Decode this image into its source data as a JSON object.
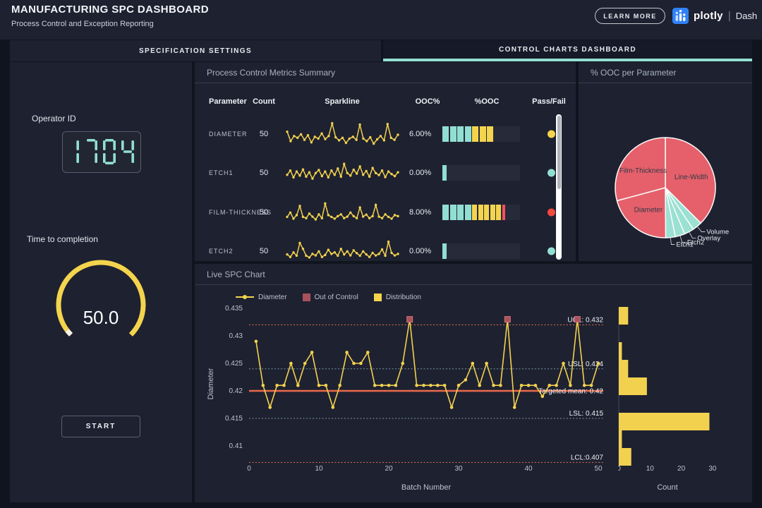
{
  "colors": {
    "accent": "#91dfd2",
    "yellow": "#f4d44d",
    "red": "#f45060",
    "salmon": "#e96a4b",
    "brand_blue": "#2f81f7"
  },
  "header": {
    "title": "MANUFACTURING SPC DASHBOARD",
    "subtitle": "Process Control and Exception Reporting",
    "learn_more": "LEARN MORE",
    "brand": "plotly",
    "brand_divider": "|",
    "brand_suffix": "Dash"
  },
  "tabs": [
    {
      "label": "SPECIFICATION SETTINGS",
      "active": false
    },
    {
      "label": "CONTROL CHARTS DASHBOARD",
      "active": true
    }
  ],
  "left_panel": {
    "operator_label": "Operator ID",
    "gauge_label": "Time to completion",
    "start_label": "START"
  },
  "metrics_panel": {
    "title": "Process Control Metrics Summary",
    "columns": [
      "Parameter",
      "Count",
      "Sparkline",
      "OOC%",
      "%OOC",
      "Pass/Fail"
    ],
    "rows": [
      {
        "name": "DIAMETER",
        "count": "50",
        "ooc": "6.00%",
        "dot_color": "#f4d44d",
        "bar": [
          {
            "color": "#91dfd2",
            "w": 9
          },
          {
            "color": "#91dfd2",
            "w": 9
          },
          {
            "color": "#91dfd2",
            "w": 9
          },
          {
            "color": "#91dfd2",
            "w": 9
          },
          {
            "color": "#f4d44d",
            "w": 9
          },
          {
            "color": "#f4d44d",
            "w": 9
          },
          {
            "color": "#f4d44d",
            "w": 9
          }
        ]
      },
      {
        "name": "ETCH1",
        "count": "50",
        "ooc": "0.00%",
        "dot_color": "#91dfd2",
        "bar": [
          {
            "color": "#91dfd2",
            "w": 6
          }
        ]
      },
      {
        "name": "FILM-THICKNESS",
        "count": "50",
        "ooc": "8.00%",
        "dot_color": "#f4493f",
        "bar": [
          {
            "color": "#91dfd2",
            "w": 9
          },
          {
            "color": "#91dfd2",
            "w": 9
          },
          {
            "color": "#91dfd2",
            "w": 9
          },
          {
            "color": "#91dfd2",
            "w": 9
          },
          {
            "color": "#f4d44d",
            "w": 7
          },
          {
            "color": "#f4d44d",
            "w": 7
          },
          {
            "color": "#f4d44d",
            "w": 7
          },
          {
            "color": "#f4d44d",
            "w": 7
          },
          {
            "color": "#f4d44d",
            "w": 7
          },
          {
            "color": "#f45060",
            "w": 4
          }
        ]
      },
      {
        "name": "ETCH2",
        "count": "50",
        "ooc": "0.00%",
        "dot_color": "#91dfd2",
        "bar": [
          {
            "color": "#91dfd2",
            "w": 6
          }
        ]
      }
    ]
  },
  "pie_panel": {
    "title": "% OOC per Parameter"
  },
  "spc_panel": {
    "title": "Live SPC Chart",
    "legend": [
      {
        "label": "Diameter"
      },
      {
        "label": "Out of Control"
      },
      {
        "label": "Distribution"
      }
    ]
  },
  "chart_data": [
    {
      "id": "operator-led",
      "render": "led",
      "type": "table",
      "digits": "1704",
      "color": "#91dfd2"
    },
    {
      "id": "time-gauge",
      "render": "gauge",
      "type": "pie",
      "display": "50.0",
      "value": 50.0,
      "color": "#f4d44d",
      "tip_color": "#f8f3e1"
    },
    {
      "id": "spark-diameter",
      "render": "sparkline",
      "type": "line",
      "color": "#f2d14f",
      "values": [
        0.62,
        0.25,
        0.45,
        0.38,
        0.52,
        0.3,
        0.48,
        0.2,
        0.42,
        0.35,
        0.55,
        0.33,
        0.45,
        0.95,
        0.4,
        0.28,
        0.38,
        0.18,
        0.35,
        0.42,
        0.3,
        0.9,
        0.35,
        0.25,
        0.4,
        0.15,
        0.32,
        0.45,
        0.28,
        0.92,
        0.38,
        0.3,
        0.5
      ]
    },
    {
      "id": "spark-etch1",
      "render": "sparkline",
      "type": "line",
      "color": "#f2d14f",
      "values": [
        0.45,
        0.62,
        0.35,
        0.58,
        0.42,
        0.66,
        0.38,
        0.55,
        0.3,
        0.52,
        0.64,
        0.4,
        0.58,
        0.35,
        0.62,
        0.45,
        0.7,
        0.38,
        0.88,
        0.52,
        0.42,
        0.65,
        0.5,
        0.78,
        0.45,
        0.6,
        0.38,
        0.72,
        0.52,
        0.44,
        0.62,
        0.36,
        0.58,
        0.48,
        0.4,
        0.55
      ]
    },
    {
      "id": "spark-film-thickness",
      "render": "sparkline",
      "type": "line",
      "color": "#f2d14f",
      "values": [
        0.35,
        0.52,
        0.28,
        0.42,
        0.78,
        0.35,
        0.3,
        0.48,
        0.36,
        0.25,
        0.45,
        0.3,
        0.88,
        0.42,
        0.35,
        0.28,
        0.38,
        0.45,
        0.3,
        0.36,
        0.52,
        0.38,
        0.3,
        0.72,
        0.36,
        0.44,
        0.3,
        0.38,
        0.82,
        0.36,
        0.3,
        0.45,
        0.35,
        0.28,
        0.42,
        0.38
      ]
    },
    {
      "id": "spark-etch2",
      "render": "sparkline",
      "type": "line",
      "color": "#f2d14f",
      "values": [
        0.4,
        0.3,
        0.48,
        0.35,
        0.85,
        0.62,
        0.35,
        0.28,
        0.42,
        0.36,
        0.52,
        0.3,
        0.38,
        0.58,
        0.42,
        0.48,
        0.35,
        0.62,
        0.4,
        0.52,
        0.36,
        0.56,
        0.45,
        0.35,
        0.52,
        0.4,
        0.3,
        0.46,
        0.36,
        0.42,
        0.6,
        0.35,
        0.9,
        0.46,
        0.36,
        0.42
      ]
    },
    {
      "id": "ooc-pie",
      "render": "pie",
      "type": "pie",
      "title": "% OOC per Parameter",
      "slices": [
        {
          "label": "Line-Width",
          "pct": 37.5,
          "color": "#e5606b",
          "inside": true
        },
        {
          "label": "Volume",
          "pct": 3.1,
          "color": "#9ae1d3",
          "inside": false
        },
        {
          "label": "Overlay",
          "pct": 3.1,
          "color": "#9ae1d3",
          "inside": false
        },
        {
          "label": "Etch2",
          "pct": 3.1,
          "color": "#9ae1d3",
          "inside": false
        },
        {
          "label": "Etch1",
          "pct": 3.1,
          "color": "#9ae1d3",
          "inside": false
        },
        {
          "label": "Diameter",
          "pct": 20.9,
          "color": "#e5606b",
          "inside": true
        },
        {
          "label": "Film-Thickness",
          "pct": 29.2,
          "color": "#e5606b",
          "inside": true
        }
      ]
    },
    {
      "id": "spc-chart",
      "render": "spc",
      "type": "line",
      "series_name": "Diameter",
      "xlabel": "Batch Number",
      "ylabel": "Diameter",
      "color": "#f2d14f",
      "ooc_color": "#a9525c",
      "x_start": 1,
      "y": [
        0.429,
        0.421,
        0.417,
        0.421,
        0.421,
        0.425,
        0.421,
        0.425,
        0.427,
        0.421,
        0.421,
        0.417,
        0.421,
        0.427,
        0.425,
        0.425,
        0.427,
        0.421,
        0.421,
        0.421,
        0.421,
        0.425,
        0.433,
        0.421,
        0.421,
        0.421,
        0.421,
        0.421,
        0.417,
        0.421,
        0.422,
        0.425,
        0.421,
        0.425,
        0.421,
        0.421,
        0.433,
        0.417,
        0.421,
        0.421,
        0.421,
        0.419,
        0.421,
        0.421,
        0.425,
        0.421,
        0.433,
        0.421,
        0.421,
        0.425
      ],
      "ooc": {
        "batches": [
          23,
          37,
          47
        ],
        "value": 0.433
      },
      "yticks": [
        0.435,
        0.43,
        0.425,
        0.42,
        0.415,
        0.41
      ],
      "xticks": [
        0,
        10,
        20,
        30,
        40,
        50
      ],
      "ylim": [
        0.4065,
        0.4355
      ],
      "ref_lines": [
        {
          "label": "UCL: 0.432",
          "value": 0.432,
          "dash": true,
          "color": "#e8734f"
        },
        {
          "label": "USL: 0.424",
          "value": 0.424,
          "dash": true,
          "color": "#7797a2"
        },
        {
          "label": "Targeted mean: 0.42",
          "value": 0.42,
          "dash": false,
          "color": "#e96a4b"
        },
        {
          "label": "LSL: 0.415",
          "value": 0.415,
          "dash": true,
          "color": "#7797a2"
        },
        {
          "label": "LCL:0.407",
          "value": 0.407,
          "dash": true,
          "color": "#e8734f"
        }
      ]
    },
    {
      "id": "ooc-histogram",
      "render": "hist",
      "type": "bar",
      "orientation": "h",
      "xlabel": "Count",
      "color": "#f2d14f",
      "bin_top_value": 0.4351,
      "bin_size": 0.0032,
      "counts": [
        3,
        0,
        1,
        3,
        9,
        0,
        29,
        1,
        4
      ],
      "xticks": [
        0,
        10,
        20,
        30
      ]
    }
  ]
}
